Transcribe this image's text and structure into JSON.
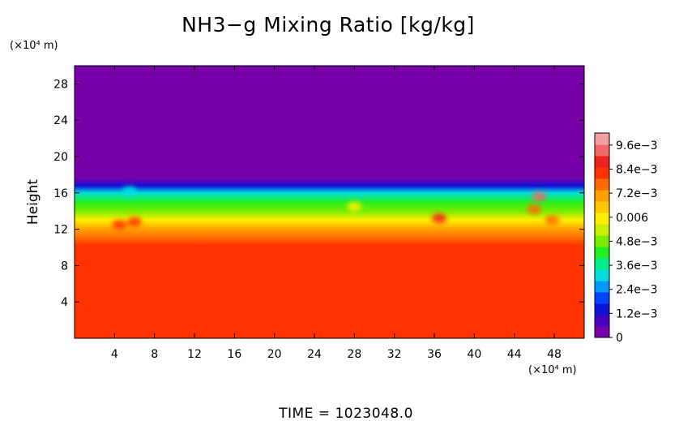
{
  "chart_data": {
    "type": "heatmap",
    "title": "NH3−g Mixing Ratio [kg/kg]",
    "ylabel": "Height",
    "y_unit": "(×10⁴ m)",
    "x_unit": "(×10⁴ m)",
    "time_label": "TIME  =  1023048.0",
    "xlim": [
      0,
      51
    ],
    "ylim": [
      0,
      30
    ],
    "x_ticks": [
      4,
      8,
      12,
      16,
      20,
      24,
      28,
      32,
      36,
      40,
      44,
      48
    ],
    "x_tick_labels": [
      "4",
      "8",
      "12",
      "16",
      "20",
      "24",
      "28",
      "32",
      "36",
      "40",
      "44",
      "48"
    ],
    "y_ticks": [
      4,
      8,
      12,
      16,
      20,
      24,
      28
    ],
    "y_tick_labels": [
      "4",
      "8",
      "12",
      "16",
      "20",
      "24",
      "28"
    ],
    "colorbar": {
      "min": 0,
      "max": 0.0102,
      "tick_values": [
        0,
        0.0012,
        0.0024,
        0.0036,
        0.0048,
        0.006,
        0.0072,
        0.0084,
        0.0096
      ],
      "tick_labels": [
        "0",
        "1.2e−3",
        "2.4e−3",
        "3.6e−3",
        "4.8e−3",
        "0.006",
        "7.2e−3",
        "8.4e−3",
        "9.6e−3"
      ],
      "colors": [
        "#7800a8",
        "#4a00c0",
        "#1010d8",
        "#0044ff",
        "#0099ff",
        "#00dddd",
        "#00ee88",
        "#22ee22",
        "#77ee00",
        "#ccee00",
        "#ffee00",
        "#ffc800",
        "#ffa000",
        "#ff6a00",
        "#ff3300",
        "#ee2222",
        "#f06a6a",
        "#f4a0a0"
      ]
    },
    "profile": [
      {
        "height": 0,
        "value": 0.0084
      },
      {
        "height": 10.2,
        "value": 0.0084
      },
      {
        "height": 11.0,
        "value": 0.0077
      },
      {
        "height": 12.0,
        "value": 0.007
      },
      {
        "height": 13.0,
        "value": 0.0058
      },
      {
        "height": 14.0,
        "value": 0.005
      },
      {
        "height": 15.0,
        "value": 0.0042
      },
      {
        "height": 16.0,
        "value": 0.003
      },
      {
        "height": 16.8,
        "value": 0.0016
      },
      {
        "height": 17.6,
        "value": 0.0004
      },
      {
        "height": 18.2,
        "value": 0.0
      },
      {
        "height": 30,
        "value": 0.0
      }
    ],
    "features": [
      {
        "x": 4.5,
        "y": 12.5,
        "value": 0.008
      },
      {
        "x": 6.0,
        "y": 12.8,
        "value": 0.0082
      },
      {
        "x": 36.5,
        "y": 13.2,
        "value": 0.009
      },
      {
        "x": 46.5,
        "y": 15.6,
        "value": 0.0095
      },
      {
        "x": 46.0,
        "y": 14.2,
        "value": 0.0078
      },
      {
        "x": 47.8,
        "y": 13.0,
        "value": 0.0076
      },
      {
        "x": 28.0,
        "y": 14.5,
        "value": 0.006
      },
      {
        "x": 5.5,
        "y": 16.2,
        "value": 0.003
      }
    ]
  }
}
